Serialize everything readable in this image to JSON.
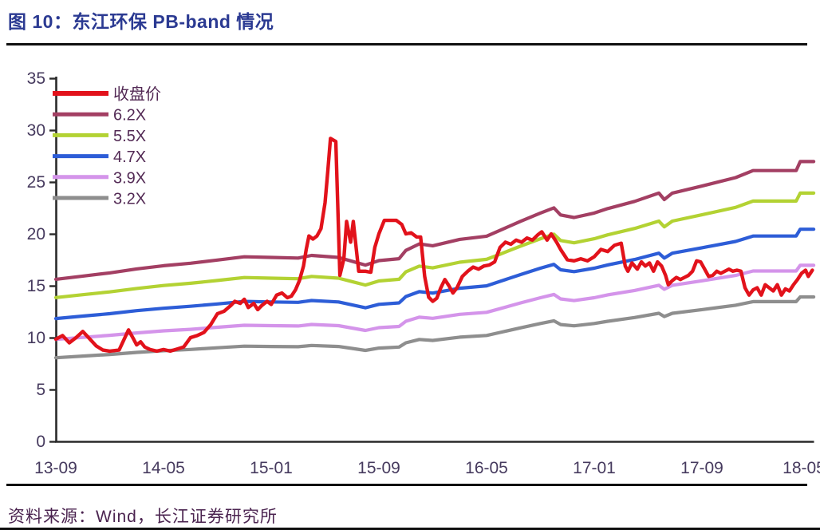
{
  "header": {
    "title": "图 10：东江环保 PB-band 情况"
  },
  "footer": {
    "source_label": "资料来源：Wind，长江证券研究所"
  },
  "colors": {
    "title": "#2b3a92",
    "footer_text": "#4b2450",
    "axis_line": "#2a2a2a",
    "tick_label": "#463a5e",
    "legend_label": "#532a55",
    "rule": "#101010",
    "close_price": "#e2121b",
    "pb_6_2x": "#a33f63",
    "pb_5_5x": "#b3d233",
    "pb_4_7x": "#2d5dd7",
    "pb_3_9x": "#d494ea",
    "pb_3_2x": "#8e8e8e"
  },
  "chart_data": {
    "type": "line",
    "title": "图 10：东江环保 PB-band 情况",
    "xlabel": "",
    "ylabel": "",
    "grid": false,
    "legend_position": "top-left-inside",
    "y_axis": {
      "range": [
        0,
        35
      ],
      "ticks": [
        0,
        5,
        10,
        15,
        20,
        25,
        30,
        35
      ]
    },
    "x_axis": {
      "unit": "YY-MM",
      "range_months": [
        0,
        56.5
      ],
      "tick_months": [
        0,
        8,
        16,
        24,
        32,
        40,
        48,
        56
      ],
      "tick_labels": [
        "13-09",
        "14-05",
        "15-01",
        "15-09",
        "16-05",
        "17-01",
        "17-09",
        "18-05"
      ]
    },
    "band_x": [
      0,
      2,
      4,
      6,
      8,
      10,
      12,
      14,
      16,
      18,
      19,
      21,
      22,
      23,
      24,
      25.5,
      26,
      27,
      28,
      30,
      32,
      33,
      34.5,
      36,
      37,
      37.5,
      38.5,
      40,
      41,
      43,
      44.8,
      45.2,
      45.8,
      48,
      50.5,
      51.8,
      55,
      55.3,
      56.3
    ],
    "series": [
      {
        "key": "close_price",
        "name": "收盘价",
        "color": "#e2121b",
        "kind": "price",
        "x": [
          0,
          0.5,
          1,
          1.5,
          2,
          2.5,
          3,
          3.5,
          4,
          4.7,
          5.4,
          5.8,
          6,
          6.3,
          6.6,
          7,
          7.5,
          8,
          8.5,
          9,
          9.5,
          10,
          10.5,
          11,
          11.5,
          12,
          12.5,
          13,
          13.3,
          13.7,
          14,
          14.3,
          14.7,
          15,
          15.3,
          15.7,
          16,
          16.4,
          16.8,
          17.2,
          17.5,
          17.8,
          18.1,
          18.4,
          18.6,
          18.8,
          19.1,
          19.4,
          19.7,
          20,
          20.2,
          20.4,
          20.8,
          21.1,
          21.4,
          21.6,
          21.9,
          22.1,
          22.5,
          23,
          23.4,
          23.7,
          24,
          24.4,
          25.3,
          25.7,
          26,
          26.4,
          26.8,
          27.1,
          27.4,
          27.7,
          28,
          28.3,
          28.6,
          28.9,
          29.2,
          29.5,
          29.8,
          30.2,
          30.6,
          31,
          31.4,
          31.8,
          32.2,
          32.6,
          33,
          33.4,
          33.8,
          34.2,
          34.6,
          35,
          35.4,
          35.8,
          36.1,
          36.5,
          36.8,
          37.2,
          37.5,
          38,
          38.5,
          39,
          39.5,
          40,
          40.5,
          41,
          41.5,
          42,
          42.3,
          42.5,
          42.8,
          43.2,
          43.5,
          43.8,
          44.1,
          44.4,
          44.7,
          45,
          45.3,
          45.5,
          45.8,
          46.1,
          46.4,
          46.7,
          47,
          47.3,
          47.6,
          47.9,
          48.2,
          48.5,
          48.8,
          49.1,
          49.4,
          49.7,
          50,
          50.3,
          50.6,
          50.9,
          51.2,
          51.5,
          51.8,
          52.1,
          52.4,
          52.7,
          53,
          53.3,
          53.6,
          53.9,
          54.2,
          54.5,
          54.8,
          55.1,
          55.4,
          55.7,
          55.9,
          56.2
        ],
        "values": [
          9.85,
          10.2,
          9.5,
          10,
          10.6,
          9.9,
          9.2,
          8.8,
          8.7,
          8.8,
          10.75,
          9.8,
          9.3,
          9.6,
          9.1,
          8.85,
          8.7,
          8.85,
          8.7,
          8.9,
          9.1,
          10,
          10.2,
          10.5,
          11.25,
          12.3,
          12.55,
          13.1,
          13.5,
          13.3,
          13.7,
          12.9,
          13.3,
          12.7,
          13.1,
          13.5,
          13.2,
          14.1,
          14.3,
          13.85,
          14,
          14.6,
          15.5,
          16.9,
          18.5,
          19.8,
          19.5,
          19.8,
          20.5,
          23,
          26,
          29.2,
          28.9,
          16,
          17.6,
          21.2,
          19.2,
          21.2,
          16.4,
          16.4,
          16.3,
          18.7,
          20,
          21.3,
          21.3,
          20.9,
          20,
          20.1,
          19.7,
          19.7,
          15.9,
          13.9,
          13.5,
          13.8,
          14.8,
          15.6,
          15,
          14.3,
          14.8,
          15.9,
          16.4,
          16.8,
          16.6,
          16.9,
          17,
          17.3,
          18.7,
          19.2,
          19,
          19.4,
          19.2,
          19.6,
          19.4,
          19.9,
          20.2,
          19.4,
          20,
          19.2,
          18.5,
          17.5,
          17.4,
          17.6,
          17.4,
          17.8,
          18.5,
          18.3,
          18.9,
          19.1,
          16.9,
          16.4,
          17.2,
          16.6,
          17.3,
          16.9,
          17.2,
          16.4,
          17.3,
          16.9,
          16,
          15.1,
          15.5,
          15.8,
          15.6,
          15.8,
          16,
          16.4,
          17.4,
          17.3,
          16.6,
          15.9,
          16,
          16.4,
          16.2,
          16.4,
          16.6,
          16.4,
          16.5,
          16.4,
          14.8,
          14.1,
          14.6,
          14.8,
          14.1,
          15.1,
          14.8,
          14.5,
          15.1,
          14.1,
          14.7,
          14.5,
          15.1,
          15.6,
          16.2,
          16.5,
          15.9,
          16.5
        ]
      },
      {
        "key": "pb_6_2x",
        "name": "6.2X",
        "color": "#a33f63",
        "kind": "band",
        "multiple": 6.2,
        "values": [
          15.62,
          15.93,
          16.24,
          16.62,
          16.93,
          17.17,
          17.48,
          17.79,
          17.73,
          17.67,
          17.92,
          17.73,
          17.36,
          16.99,
          17.42,
          17.61,
          18.41,
          19.03,
          18.85,
          19.47,
          19.78,
          20.34,
          21.2,
          22.01,
          22.51,
          21.82,
          21.58,
          22.01,
          22.44,
          23.13,
          23.93,
          23.31,
          23.93,
          24.61,
          25.42,
          26.1,
          26.1,
          26.97,
          26.97
        ]
      },
      {
        "key": "pb_5_5x",
        "name": "5.5X",
        "color": "#b3d233",
        "kind": "band",
        "multiple": 5.5,
        "values": [
          13.86,
          14.14,
          14.41,
          14.74,
          15.02,
          15.24,
          15.51,
          15.79,
          15.73,
          15.68,
          15.9,
          15.73,
          15.4,
          15.07,
          15.46,
          15.62,
          16.34,
          16.89,
          16.72,
          17.27,
          17.55,
          18.04,
          18.81,
          19.53,
          19.97,
          19.36,
          19.14,
          19.53,
          19.91,
          20.52,
          21.23,
          20.68,
          21.23,
          21.84,
          22.55,
          23.16,
          23.16,
          23.93,
          23.93
        ]
      },
      {
        "key": "pb_4_7x",
        "name": "4.7X",
        "color": "#2d5dd7",
        "kind": "band",
        "multiple": 4.7,
        "values": [
          11.84,
          12.08,
          12.31,
          12.6,
          12.83,
          13.02,
          13.25,
          13.49,
          13.44,
          13.4,
          13.58,
          13.44,
          13.16,
          12.88,
          13.21,
          13.35,
          13.96,
          14.43,
          14.29,
          14.76,
          14.99,
          15.42,
          16.07,
          16.69,
          17.06,
          16.54,
          16.36,
          16.69,
          17.01,
          17.53,
          18.14,
          17.67,
          18.14,
          18.66,
          19.27,
          19.79,
          19.79,
          20.45,
          20.45
        ]
      },
      {
        "key": "pb_3_9x",
        "name": "3.9X",
        "color": "#d494ea",
        "kind": "band",
        "multiple": 3.9,
        "values": [
          9.83,
          10.02,
          10.22,
          10.45,
          10.65,
          10.8,
          11.0,
          11.19,
          11.15,
          11.12,
          11.27,
          11.15,
          10.92,
          10.69,
          10.96,
          11.08,
          11.58,
          11.97,
          11.86,
          12.25,
          12.44,
          12.79,
          13.34,
          13.85,
          14.16,
          13.73,
          13.57,
          13.85,
          14.12,
          14.55,
          15.05,
          14.66,
          15.05,
          15.48,
          15.99,
          16.42,
          16.42,
          16.97,
          16.97
        ]
      },
      {
        "key": "pb_3_2x",
        "name": "3.2X",
        "color": "#8e8e8e",
        "kind": "band",
        "multiple": 3.2,
        "values": [
          8.06,
          8.22,
          8.38,
          8.58,
          8.74,
          8.86,
          9.02,
          9.18,
          9.15,
          9.12,
          9.25,
          9.15,
          8.96,
          8.77,
          8.99,
          9.09,
          9.5,
          9.82,
          9.73,
          10.05,
          10.21,
          10.5,
          10.94,
          11.36,
          11.62,
          11.26,
          11.14,
          11.36,
          11.58,
          11.94,
          12.35,
          12.03,
          12.35,
          12.7,
          13.12,
          13.47,
          13.47,
          13.92,
          13.92
        ]
      }
    ]
  }
}
